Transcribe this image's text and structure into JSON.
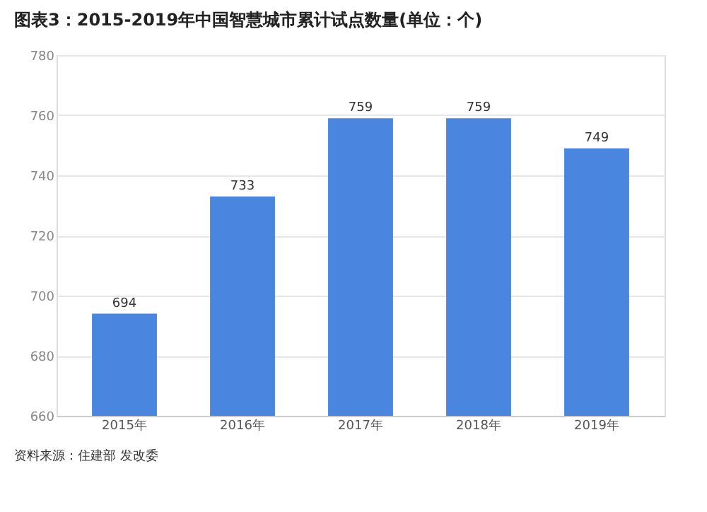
{
  "chart_data": {
    "type": "bar",
    "title": "图表3：2015-2019年中国智慧城市累计试点数量(单位：个)",
    "categories": [
      "2015年",
      "2016年",
      "2017年",
      "2018年",
      "2019年"
    ],
    "values": [
      694,
      733,
      759,
      759,
      749
    ],
    "color": "#4a86e0",
    "ylim": [
      660,
      780
    ],
    "yticks": [
      660,
      680,
      700,
      720,
      740,
      760,
      780
    ],
    "grid": "y",
    "data_labels": true,
    "annotations": [
      "资料来源：住建部 发改委"
    ]
  }
}
